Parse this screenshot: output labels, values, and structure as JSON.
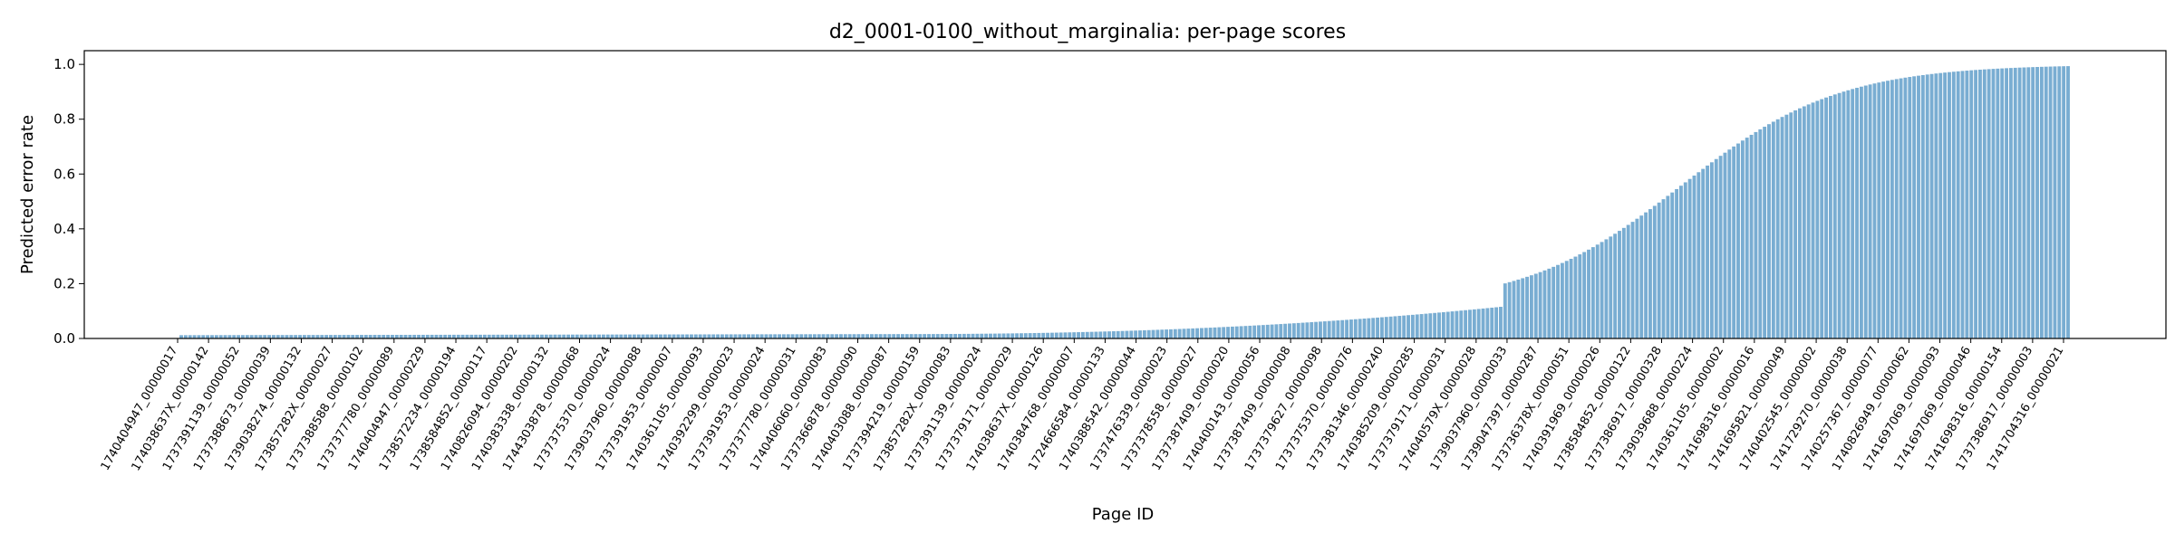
{
  "chart_data": {
    "type": "bar",
    "title": "d2_0001-0100_without_marginalia: per-page scores",
    "xlabel": "Page ID",
    "ylabel": "Predicted error rate",
    "ylim": [
      0,
      1.05
    ],
    "yticks": [
      "0.0",
      "0.2",
      "0.4",
      "0.6",
      "0.8",
      "1.0"
    ],
    "bar_color": "#1f77b4",
    "grid": false,
    "num_bars": 430,
    "x_tick_labels": [
      "1740404947_00000017",
      "174038637X_00000142",
      "1737391139_00000052",
      "1737388673_00000039",
      "1739038274_00000132",
      "173857282X_00000027",
      "1737388588_00000102",
      "1737377780_00000089",
      "1740404947_00000229",
      "1738572234_00000194",
      "1738584852_00000117",
      "1740826094_00000202",
      "1740383338_00000132",
      "1744303878_00000068",
      "1737375370_00000024",
      "1739037960_00000088",
      "1737391953_00000007",
      "1740361105_00000093",
      "1740392299_00000023",
      "1737391953_00000024",
      "1737377780_00000031",
      "1740406060_00000083",
      "1737366878_00000090",
      "1740403088_00000087",
      "1737394219_00000159",
      "173857282X_00000083",
      "1737391139_00000024",
      "1737379171_00000029",
      "174038637X_00000126",
      "1740384768_00000007",
      "1724666584_00000133",
      "1740388542_00000044",
      "1737476339_00000023",
      "1737378558_00000027",
      "1737387409_00000020",
      "1740400143_00000056",
      "1737387409_00000008",
      "1737379627_00000098",
      "1737375370_00000076",
      "1737381346_00000240",
      "1740385209_00000285",
      "1737379171_00000031",
      "174040579X_00000028",
      "1739037960_00000033",
      "1739047397_00000287",
      "173736378X_00000051",
      "1740391969_00000026",
      "1738584852_00000122",
      "1737386917_00000328",
      "1739039688_00000224",
      "1740361105_00000002",
      "1741698316_00000016",
      "1741695821_00000049",
      "1740402545_00000002",
      "1741729270_00000038",
      "1740257367_00000077",
      "1740826949_00000062",
      "1741697069_00000093",
      "1741697069_00000046",
      "1741698316_00000154",
      "1737386917_00000003",
      "1741704316_00000021"
    ]
  }
}
